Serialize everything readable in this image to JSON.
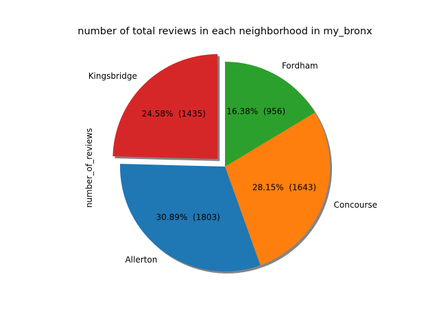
{
  "chart_data": {
    "type": "pie",
    "title": "number of total reviews in each neighborhood in my_bronx",
    "ylabel": "number_of_reviews",
    "slices": [
      {
        "label": "Kingsbridge",
        "value": 1435,
        "percent_label": "24.58%  (1435)",
        "color": "#d62728",
        "exploded": true
      },
      {
        "label": "Allerton",
        "value": 1803,
        "percent_label": "30.89%  (1803)",
        "color": "#1f77b4",
        "exploded": false
      },
      {
        "label": "Concourse",
        "value": 1643,
        "percent_label": "28.15%  (1643)",
        "color": "#ff7f0e",
        "exploded": false
      },
      {
        "label": "Fordham",
        "value": 956,
        "percent_label": "16.38%  (956)",
        "color": "#2ca02c",
        "exploded": false
      }
    ],
    "start_angle_deg": 90,
    "direction": "counterclockwise",
    "shadow": true
  }
}
